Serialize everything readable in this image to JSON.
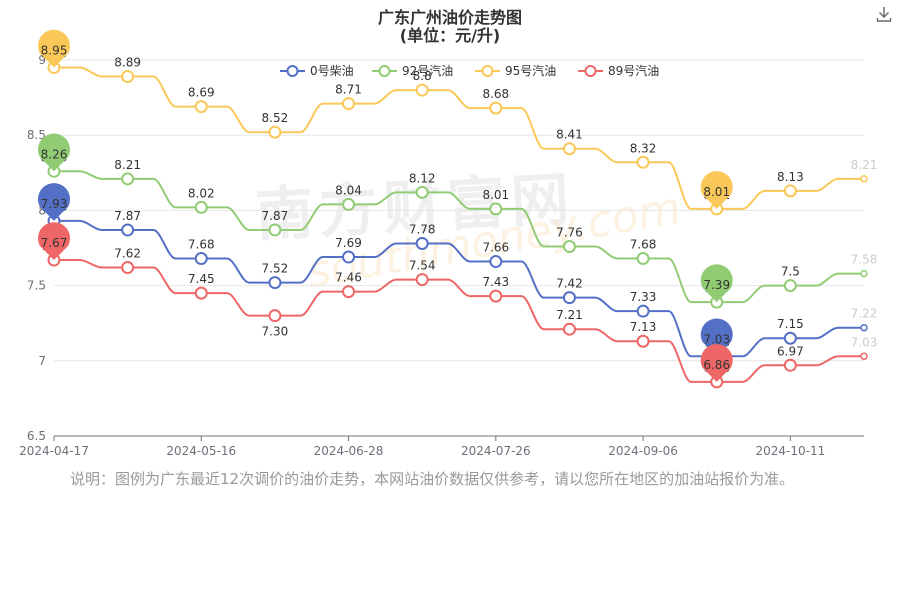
{
  "page": {
    "title": "广东广州油价走势图",
    "subtitle": "(单位：元/升)",
    "note": "说明：图例为广东最近12次调价的油价走势，本网站油价数据仅供参考，请以您所在地区的加油站报价为准。",
    "watermark": "南方财富网",
    "watermark_en": "southmoney.com"
  },
  "chart_data": {
    "type": "line",
    "x_tick_labels": [
      "2024-04-17",
      "2024-05-16",
      "2024-06-28",
      "2024-07-26",
      "2024-09-06",
      "2024-10-11"
    ],
    "x_tick_indices": [
      0,
      2,
      4,
      6,
      8,
      10
    ],
    "ylim": [
      6.5,
      9
    ],
    "y_ticks": [
      6.5,
      7,
      7.5,
      8,
      8.5,
      9
    ],
    "y_tick_labels": [
      "6.5",
      "7",
      "7.5",
      "8",
      "8.5",
      "9"
    ],
    "legend_position": "top",
    "num_points": 12,
    "series": [
      {
        "name": "0号柴油",
        "color": "#5470c6",
        "values": [
          7.93,
          7.87,
          7.68,
          7.52,
          7.69,
          7.78,
          7.66,
          7.42,
          7.33,
          7.03,
          7.15,
          7.22
        ],
        "labels": [
          "7.93",
          "7.87",
          "7.68",
          "7.52",
          "7.69",
          "7.78",
          "7.66",
          "7.42",
          "7.33",
          "7.03",
          "7.15",
          "7.22"
        ]
      },
      {
        "name": "92号汽油",
        "color": "#91cc75",
        "values": [
          8.26,
          8.21,
          8.02,
          7.87,
          8.04,
          8.12,
          8.01,
          7.76,
          7.68,
          7.39,
          7.5,
          7.58
        ],
        "labels": [
          "8.26",
          "8.21",
          "8.02",
          "7.87",
          "8.04",
          "8.12",
          "8.01",
          "7.76",
          "7.68",
          "7.39",
          "7.5",
          "7.58"
        ]
      },
      {
        "name": "95号汽油",
        "color": "#fac858",
        "values": [
          8.95,
          8.89,
          8.69,
          8.52,
          8.71,
          8.8,
          8.68,
          8.41,
          8.32,
          8.01,
          8.13,
          8.21
        ],
        "labels": [
          "8.95",
          "8.89",
          "8.69",
          "8.52",
          "8.71",
          "8.8",
          "8.68",
          "8.41",
          "8.32",
          "8.01",
          "8.13",
          "8.21"
        ]
      },
      {
        "name": "89号汽油",
        "color": "#ee6666",
        "values": [
          7.67,
          7.62,
          7.45,
          7.3,
          7.46,
          7.54,
          7.43,
          7.21,
          7.13,
          6.86,
          6.97,
          7.03
        ],
        "labels": [
          "7.67",
          "7.62",
          "7.45",
          "7.30",
          "7.46",
          "7.54",
          "7.43",
          "7.21",
          "7.13",
          "6.86",
          "6.97",
          "7.03"
        ]
      }
    ]
  }
}
